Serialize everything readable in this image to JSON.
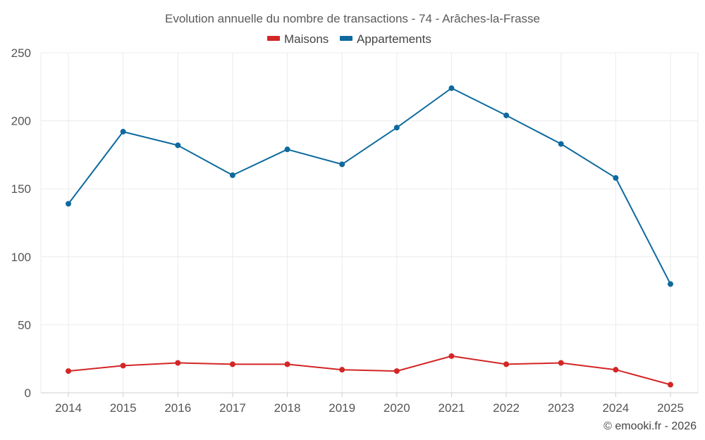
{
  "chart_data": {
    "type": "line",
    "title": "Evolution annuelle du nombre de transactions - 74 - Arâches-la-Frasse",
    "categories": [
      "2014",
      "2015",
      "2016",
      "2017",
      "2018",
      "2019",
      "2020",
      "2021",
      "2022",
      "2023",
      "2024",
      "2025"
    ],
    "series": [
      {
        "name": "Maisons",
        "color": "#d32626",
        "values": [
          16,
          20,
          22,
          21,
          21,
          17,
          16,
          27,
          21,
          22,
          17,
          6
        ]
      },
      {
        "name": "Appartements",
        "color": "#0e6a9e",
        "values": [
          139,
          192,
          182,
          160,
          179,
          168,
          195,
          224,
          204,
          183,
          158,
          80
        ]
      }
    ],
    "ylim": [
      0,
      250
    ],
    "yticks": [
      0,
      50,
      100,
      150,
      200,
      250
    ],
    "grid": true,
    "legend_position": "top-center",
    "xlabel": "",
    "ylabel": ""
  },
  "credit": "© emooki.fr - 2026"
}
